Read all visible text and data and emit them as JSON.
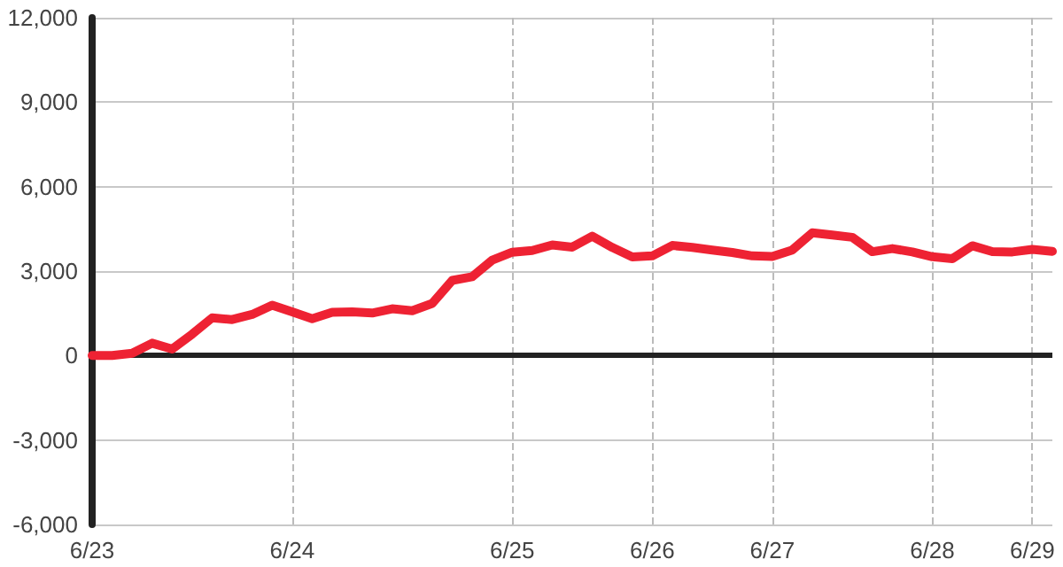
{
  "chart_data": {
    "type": "line",
    "categories": [
      "6/23",
      null,
      null,
      null,
      null,
      null,
      null,
      null,
      null,
      null,
      "6/24",
      null,
      null,
      null,
      null,
      null,
      null,
      null,
      null,
      null,
      null,
      "6/25",
      null,
      null,
      null,
      null,
      null,
      null,
      "6/26",
      null,
      null,
      null,
      null,
      null,
      "6/27",
      null,
      null,
      null,
      null,
      null,
      null,
      null,
      "6/28",
      null,
      null,
      null,
      null,
      "6/29",
      null
    ],
    "series": [
      {
        "color": "#ee2233",
        "values": [
          0,
          0,
          80,
          440,
          230,
          760,
          1340,
          1280,
          1460,
          1790,
          1550,
          1310,
          1540,
          1550,
          1510,
          1660,
          1590,
          1850,
          2670,
          2800,
          3390,
          3670,
          3730,
          3930,
          3850,
          4240,
          3840,
          3500,
          3540,
          3910,
          3840,
          3750,
          3660,
          3540,
          3520,
          3750,
          4360,
          4280,
          4200,
          3690,
          3800,
          3680,
          3510,
          3440,
          3900,
          3690,
          3680,
          3770,
          3700
        ]
      }
    ],
    "ylim": [
      -6000,
      12000
    ],
    "yticks": [
      {
        "value": -6000,
        "label": "-6,000"
      },
      {
        "value": -3000,
        "label": "-3,000"
      },
      0,
      {
        "value": 3000,
        "label": "3,000"
      },
      {
        "value": 6000,
        "label": "6,000"
      },
      {
        "value": 9000,
        "label": "9,000"
      },
      {
        "value": 12000,
        "label": "12,000"
      }
    ],
    "ref_lines": [
      {
        "axis": "y",
        "value": 0,
        "color": "#222222"
      }
    ],
    "grid": true,
    "marker": "none",
    "line_style": "solid"
  }
}
